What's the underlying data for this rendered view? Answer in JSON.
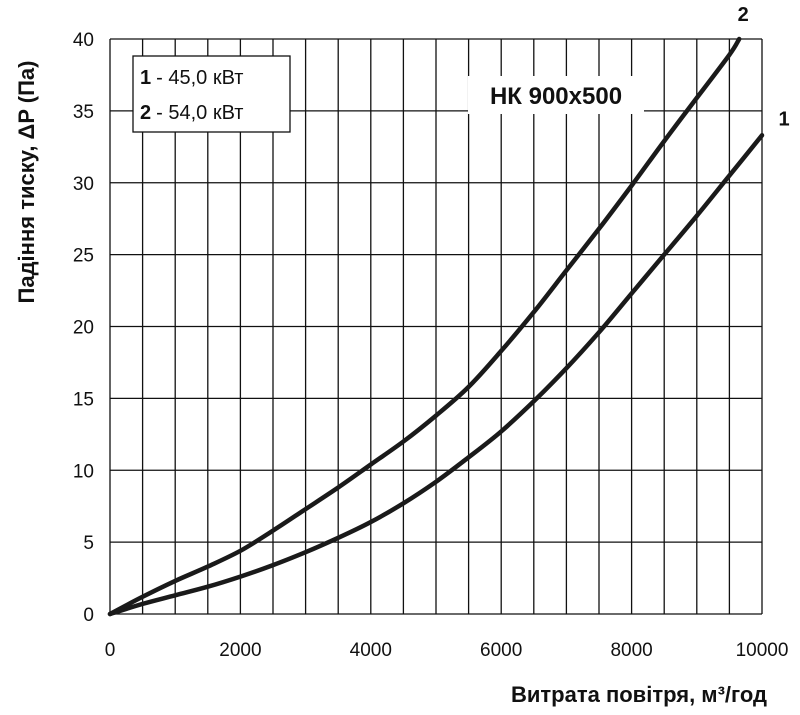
{
  "chart_data": {
    "type": "line",
    "title": "",
    "xlabel": "Витрата повітря, м³/год",
    "ylabel": "Падіння тиску, ΔP (Па)",
    "xlim": [
      0,
      10000
    ],
    "ylim": [
      0,
      40
    ],
    "x_ticks": [
      0,
      2000,
      4000,
      6000,
      8000,
      10000
    ],
    "y_ticks": [
      0,
      5,
      10,
      15,
      20,
      25,
      30,
      35,
      40
    ],
    "x_tick_labels": [
      "0",
      "2000",
      "4000",
      "6000",
      "8000",
      "10000"
    ],
    "y_tick_labels": [
      "0",
      "5",
      "10",
      "15",
      "20",
      "25",
      "30",
      "35",
      "40"
    ],
    "grid": true,
    "annotation": "НК 900x500",
    "legend": {
      "placement": "top-left",
      "entries": [
        {
          "key": "1",
          "text": "- 45,0  кВт"
        },
        {
          "key": "2",
          "text": "- 54,0  кВт"
        }
      ]
    },
    "series": [
      {
        "name": "1",
        "x": [
          0,
          500,
          1000,
          1500,
          2000,
          2500,
          3000,
          3500,
          4000,
          4500,
          5000,
          5500,
          6000,
          6500,
          7000,
          7500,
          8000,
          8500,
          9000,
          9500,
          10000
        ],
        "y": [
          0,
          0.7,
          1.3,
          1.9,
          2.6,
          3.4,
          4.3,
          5.3,
          6.4,
          7.7,
          9.2,
          10.9,
          12.7,
          14.8,
          17.1,
          19.6,
          22.3,
          25.0,
          27.7,
          30.5,
          33.3
        ]
      },
      {
        "name": "2",
        "x": [
          0,
          500,
          1000,
          1500,
          2000,
          2500,
          3000,
          3500,
          4000,
          4500,
          5000,
          5500,
          6000,
          6500,
          7000,
          7500,
          8000,
          8500,
          9000,
          9500,
          9650
        ],
        "y": [
          0,
          1.2,
          2.3,
          3.3,
          4.4,
          5.8,
          7.3,
          8.8,
          10.4,
          12.0,
          13.8,
          15.8,
          18.3,
          21.0,
          23.9,
          26.8,
          29.8,
          32.9,
          35.9,
          38.9,
          40
        ]
      }
    ]
  }
}
